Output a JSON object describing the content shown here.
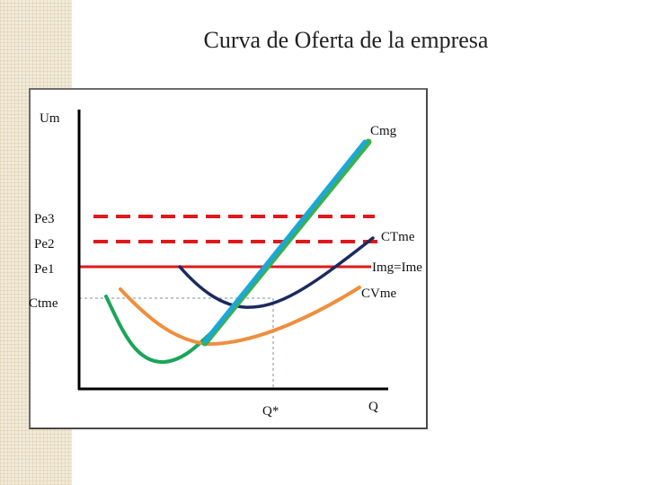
{
  "title": "Curva de Oferta de la empresa",
  "axis": {
    "y_label": "Um",
    "x_label": "Q"
  },
  "curves": {
    "cmg": "Cmg",
    "ctme": "CTme",
    "img": "Img=Ime",
    "cvme": "CVme"
  },
  "price_levels": {
    "pe3": "Pe3",
    "pe2": "Pe2",
    "pe1": "Pe1",
    "ctme_level": "Ctme"
  },
  "q_star": "Q*",
  "colors": {
    "cmg": "#1ba8d6",
    "cmg_back": "#3cb050",
    "ctme": "#1b2a5e",
    "cvme": "#ee8f3e",
    "green_curve": "#1aa55a",
    "price_line": "#e0181b",
    "guide": "#7f8fa8",
    "axis": "#000000"
  }
}
